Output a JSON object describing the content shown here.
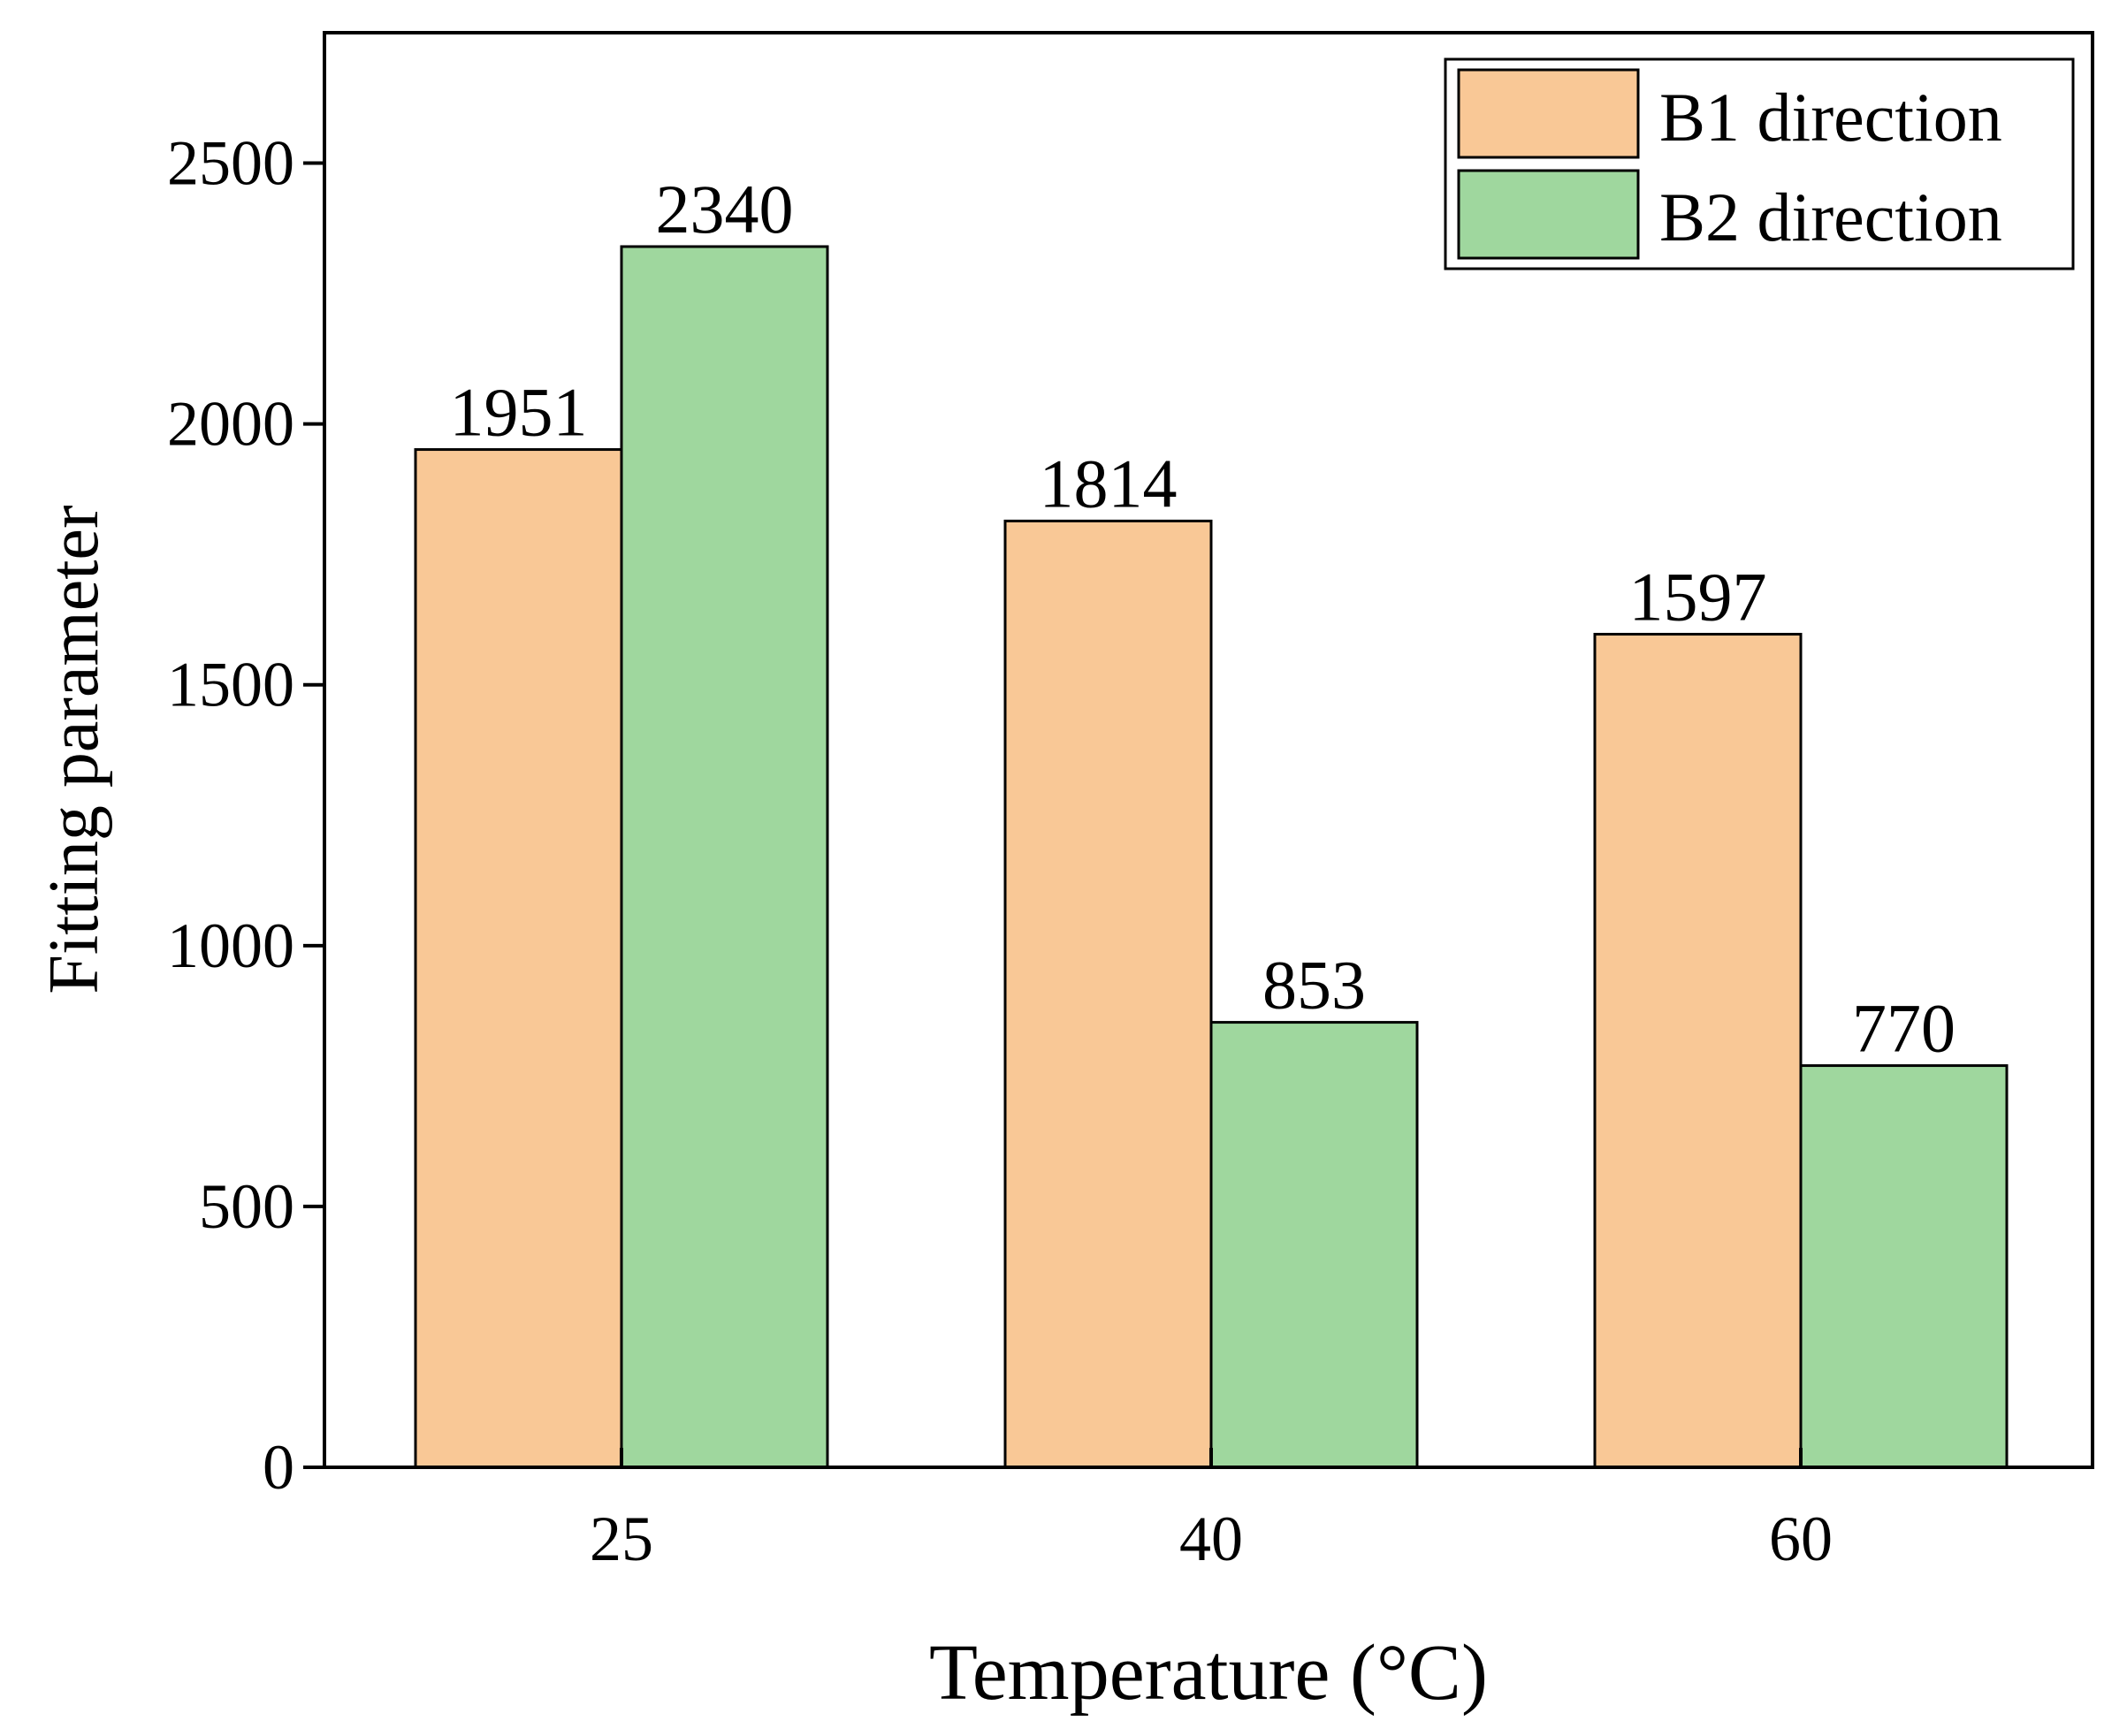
{
  "chart_data": {
    "type": "bar",
    "categories": [
      "25",
      "40",
      "60"
    ],
    "series": [
      {
        "name": "B1 direction",
        "values": [
          1951,
          1814,
          1597
        ],
        "color": "#F9C896"
      },
      {
        "name": "B2 direction",
        "values": [
          2340,
          853,
          770
        ],
        "color": "#9FD79E"
      }
    ],
    "data_labels": [
      [
        "1951",
        "1814",
        "1597"
      ],
      [
        "2340",
        "853",
        "770"
      ]
    ],
    "xlabel": "Temperature (°C)",
    "ylabel": "Fitting parameter",
    "ylim": [
      0,
      2750
    ],
    "yticks": [
      0,
      500,
      1000,
      1500,
      2000,
      2500
    ],
    "ytick_labels": [
      "0",
      "500",
      "1000",
      "1500",
      "2000",
      "2500"
    ],
    "grid": false,
    "legend_position": "top-right"
  }
}
